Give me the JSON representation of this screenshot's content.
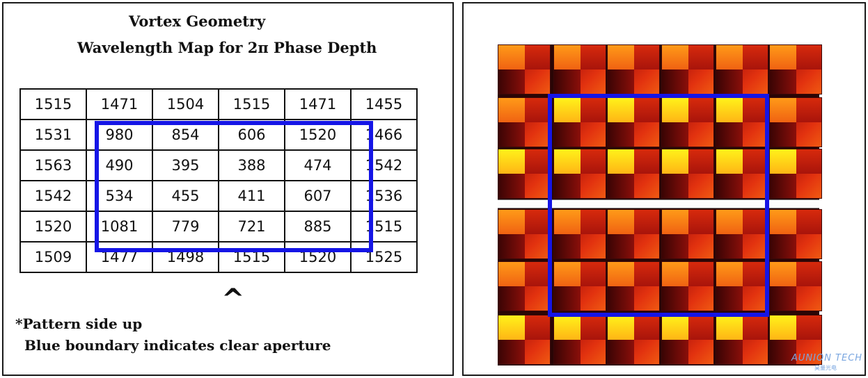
{
  "left_panel": {
    "title": "Wavelength Map for 2π Phase Depth",
    "table": [
      [
        "1515",
        "1471",
        "1504",
        "1515",
        "1471",
        "1455"
      ],
      [
        "1531",
        "980",
        "854",
        "606",
        "1520",
        "1466"
      ],
      [
        "1563",
        "490",
        "395",
        "388",
        "474",
        "1542"
      ],
      [
        "1542",
        "534",
        "455",
        "411",
        "607",
        "1536"
      ],
      [
        "1520",
        "1081",
        "779",
        "721",
        "885",
        "1515"
      ],
      [
        "1509",
        "1477",
        "1498",
        "1515",
        "1520",
        "1525"
      ]
    ],
    "caret": "^",
    "note_line1": "*Pattern side up",
    "note_line2": "Blue boundary indicates clear aperture",
    "aperture_color": "#1515e6"
  },
  "right_panel": {
    "title": "Vortex Geometry",
    "aperture_color": "#1515e6",
    "watermark": "AUNION TECH",
    "watermark_sub": "昊量光电"
  }
}
